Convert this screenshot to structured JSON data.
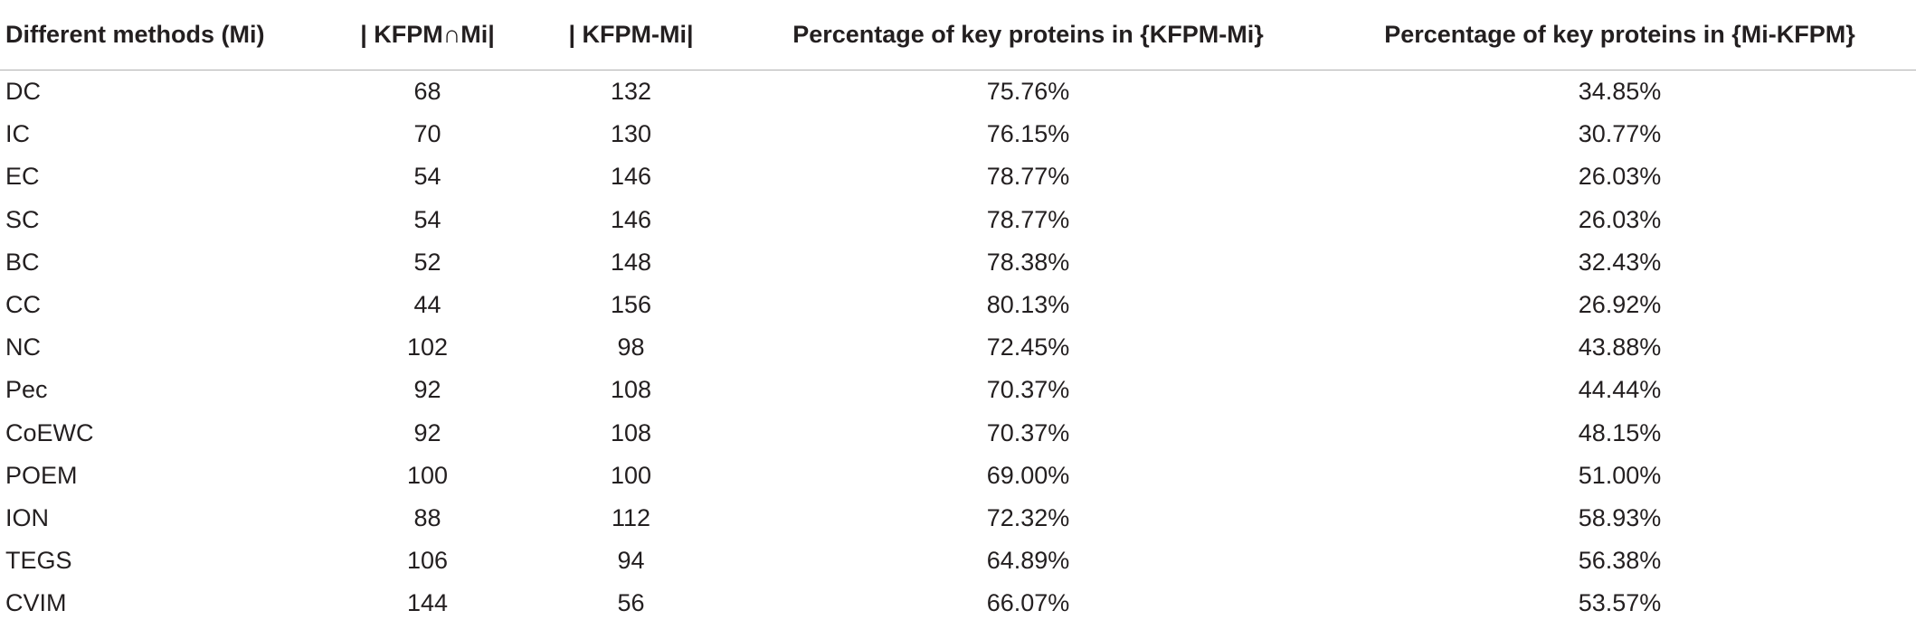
{
  "table": {
    "headers": [
      "Different methods (Mi)",
      "| KFPM∩Mi|",
      "| KFPM-Mi|",
      "Percentage of key proteins in {KFPM-Mi}",
      "Percentage of key proteins in {Mi-KFPM}"
    ],
    "rows": [
      [
        "DC",
        "68",
        "132",
        "75.76%",
        "34.85%"
      ],
      [
        "IC",
        "70",
        "130",
        "76.15%",
        "30.77%"
      ],
      [
        "EC",
        "54",
        "146",
        "78.77%",
        "26.03%"
      ],
      [
        "SC",
        "54",
        "146",
        "78.77%",
        "26.03%"
      ],
      [
        "BC",
        "52",
        "148",
        "78.38%",
        "32.43%"
      ],
      [
        "CC",
        "44",
        "156",
        "80.13%",
        "26.92%"
      ],
      [
        "NC",
        "102",
        "98",
        "72.45%",
        "43.88%"
      ],
      [
        "Pec",
        "92",
        "108",
        "70.37%",
        "44.44%"
      ],
      [
        "CoEWC",
        "92",
        "108",
        "70.37%",
        "48.15%"
      ],
      [
        "POEM",
        "100",
        "100",
        "69.00%",
        "51.00%"
      ],
      [
        "ION",
        "88",
        "112",
        "72.32%",
        "58.93%"
      ],
      [
        "TEGS",
        "106",
        "94",
        "64.89%",
        "56.38%"
      ],
      [
        "CVIM",
        "144",
        "56",
        "66.07%",
        "53.57%"
      ]
    ]
  }
}
